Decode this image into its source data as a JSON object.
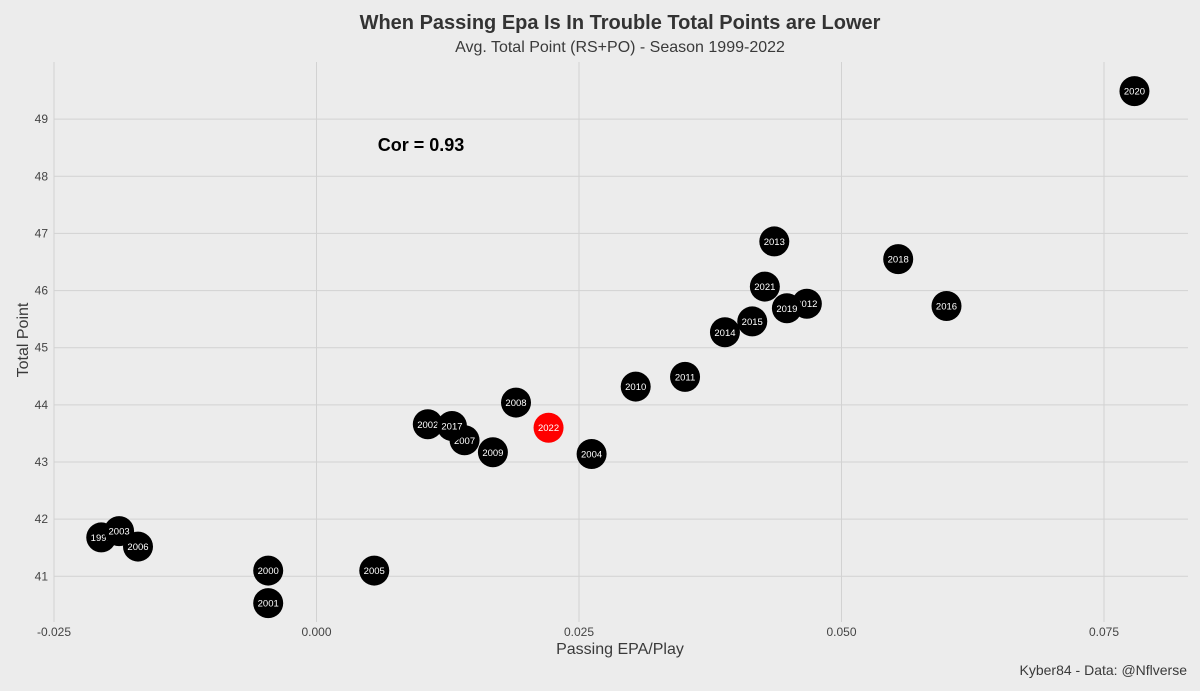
{
  "chart_data": {
    "type": "scatter",
    "title": "When Passing Epa Is In Trouble Total Points are Lower",
    "subtitle": "Avg. Total Point (RS+PO) - Season 1999-2022",
    "xlabel": "Passing EPA/Play",
    "ylabel": "Total Point",
    "caption": "Kyber84 - Data: @Nflverse",
    "annotation": "Cor = 0.93",
    "xlim": [
      -0.025,
      0.083
    ],
    "ylim": [
      40.2,
      50.0
    ],
    "x_ticks": [
      -0.025,
      0.0,
      0.025,
      0.05,
      0.075
    ],
    "x_tick_labels": [
      "-0.025",
      "0.000",
      "0.025",
      "0.050",
      "0.075"
    ],
    "y_ticks": [
      41,
      42,
      43,
      44,
      45,
      46,
      47,
      48,
      49
    ],
    "y_tick_labels": [
      "41",
      "42",
      "43",
      "44",
      "45",
      "46",
      "47",
      "48",
      "49"
    ],
    "grid": true,
    "highlight_color": "#ff0000",
    "point_color": "#000000",
    "points": [
      {
        "label": "1999",
        "x": -0.0205,
        "y": 41.68
      },
      {
        "label": "2000",
        "x": -0.0046,
        "y": 41.1
      },
      {
        "label": "2001",
        "x": -0.0046,
        "y": 40.53
      },
      {
        "label": "2002",
        "x": 0.0106,
        "y": 43.66
      },
      {
        "label": "2003",
        "x": -0.0188,
        "y": 41.79
      },
      {
        "label": "2004",
        "x": 0.0262,
        "y": 43.14
      },
      {
        "label": "2005",
        "x": 0.0055,
        "y": 41.1
      },
      {
        "label": "2006",
        "x": -0.017,
        "y": 41.52
      },
      {
        "label": "2007",
        "x": 0.0141,
        "y": 43.38
      },
      {
        "label": "2008",
        "x": 0.019,
        "y": 44.04
      },
      {
        "label": "2009",
        "x": 0.0168,
        "y": 43.17
      },
      {
        "label": "2010",
        "x": 0.0304,
        "y": 44.32
      },
      {
        "label": "2011",
        "x": 0.0351,
        "y": 44.49
      },
      {
        "label": "2012",
        "x": 0.0467,
        "y": 45.77
      },
      {
        "label": "2013",
        "x": 0.0436,
        "y": 46.86
      },
      {
        "label": "2014",
        "x": 0.0389,
        "y": 45.27
      },
      {
        "label": "2015",
        "x": 0.0415,
        "y": 45.46
      },
      {
        "label": "2016",
        "x": 0.06,
        "y": 45.73
      },
      {
        "label": "2017",
        "x": 0.0129,
        "y": 43.63
      },
      {
        "label": "2018",
        "x": 0.0554,
        "y": 46.55
      },
      {
        "label": "2019",
        "x": 0.0448,
        "y": 45.69
      },
      {
        "label": "2020",
        "x": 0.0779,
        "y": 49.49
      },
      {
        "label": "2021",
        "x": 0.0427,
        "y": 46.07
      },
      {
        "label": "2022",
        "x": 0.0221,
        "y": 43.6,
        "highlight": true
      }
    ]
  }
}
